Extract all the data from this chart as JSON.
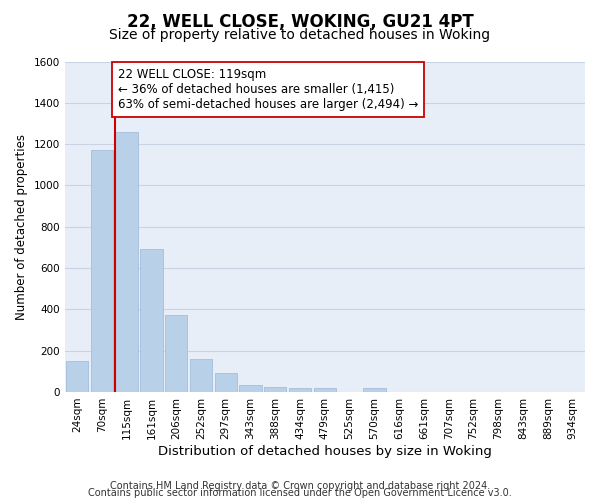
{
  "title": "22, WELL CLOSE, WOKING, GU21 4PT",
  "subtitle": "Size of property relative to detached houses in Woking",
  "xlabel": "Distribution of detached houses by size in Woking",
  "ylabel": "Number of detached properties",
  "categories": [
    "24sqm",
    "70sqm",
    "115sqm",
    "161sqm",
    "206sqm",
    "252sqm",
    "297sqm",
    "343sqm",
    "388sqm",
    "434sqm",
    "479sqm",
    "525sqm",
    "570sqm",
    "616sqm",
    "661sqm",
    "707sqm",
    "752sqm",
    "798sqm",
    "843sqm",
    "889sqm",
    "934sqm"
  ],
  "values": [
    150,
    1170,
    1260,
    690,
    375,
    160,
    90,
    35,
    22,
    18,
    18,
    0,
    20,
    0,
    0,
    0,
    0,
    0,
    0,
    0,
    0
  ],
  "bar_color": "#b8d0e8",
  "bar_edge_color": "#9ab8d8",
  "property_line_color": "#cc0000",
  "property_line_index": 2,
  "annotation_line1": "22 WELL CLOSE: 119sqm",
  "annotation_line2": "← 36% of detached houses are smaller (1,415)",
  "annotation_line3": "63% of semi-detached houses are larger (2,494) →",
  "annotation_box_facecolor": "#ffffff",
  "annotation_box_edgecolor": "#cc0000",
  "ylim": [
    0,
    1600
  ],
  "yticks": [
    0,
    200,
    400,
    600,
    800,
    1000,
    1200,
    1400,
    1600
  ],
  "plot_bg_color": "#e8eef8",
  "background_color": "#ffffff",
  "grid_color": "#c8d4e4",
  "footer_line1": "Contains HM Land Registry data © Crown copyright and database right 2024.",
  "footer_line2": "Contains public sector information licensed under the Open Government Licence v3.0.",
  "title_fontsize": 12,
  "subtitle_fontsize": 10,
  "xlabel_fontsize": 9.5,
  "ylabel_fontsize": 8.5,
  "tick_fontsize": 7.5,
  "annotation_fontsize": 8.5,
  "footer_fontsize": 7
}
